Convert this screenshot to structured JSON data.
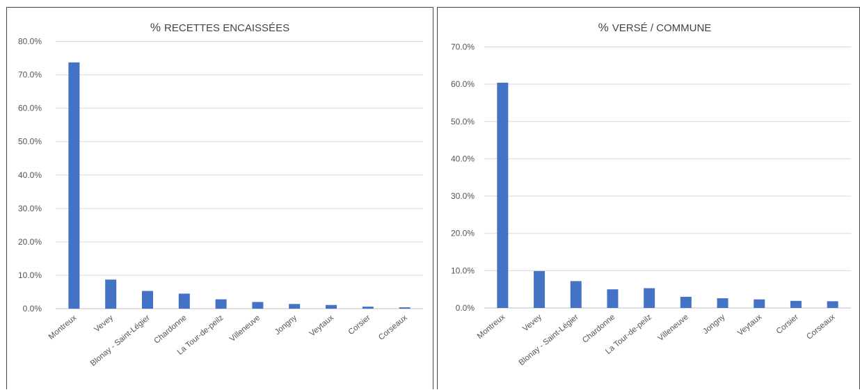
{
  "chart_data": [
    {
      "type": "bar",
      "title_symbol": "%",
      "title_text": "RECETTES ENCAISSÉES",
      "categories": [
        "Montreux",
        "Vevey",
        "Blonay - Saint-Légier",
        "Chardonne",
        "La Tour-de-peilz",
        "Villeneuve",
        "Jongny",
        "Veytaux",
        "Corsier",
        "Corseaux"
      ],
      "values": [
        73.7,
        8.7,
        5.3,
        4.5,
        2.8,
        2.0,
        1.4,
        1.1,
        0.6,
        0.4
      ],
      "ylim": [
        0,
        80
      ],
      "ytick_labels": [
        "0.0%",
        "10.0%",
        "20.0%",
        "30.0%",
        "40.0%",
        "50.0%",
        "60.0%",
        "70.0%",
        "80.0%"
      ],
      "bar_color": "#4472c4",
      "grid": true
    },
    {
      "type": "bar",
      "title_symbol": "%",
      "title_text": "VERSÉ / COMMUNE",
      "categories": [
        "Montreux",
        "Vevey",
        "Blonay - Saint-Légier",
        "Chardonne",
        "La Tour-de-peilz",
        "Villeneuve",
        "Jongny",
        "Veytaux",
        "Corsier",
        "Corseaux"
      ],
      "values": [
        60.4,
        9.9,
        7.2,
        5.0,
        5.3,
        3.0,
        2.6,
        2.3,
        1.9,
        1.8
      ],
      "ylim": [
        0,
        70
      ],
      "ytick_labels": [
        "0.0%",
        "10.0%",
        "20.0%",
        "30.0%",
        "40.0%",
        "50.0%",
        "60.0%",
        "70.0%"
      ],
      "bar_color": "#4472c4",
      "grid": true
    }
  ]
}
